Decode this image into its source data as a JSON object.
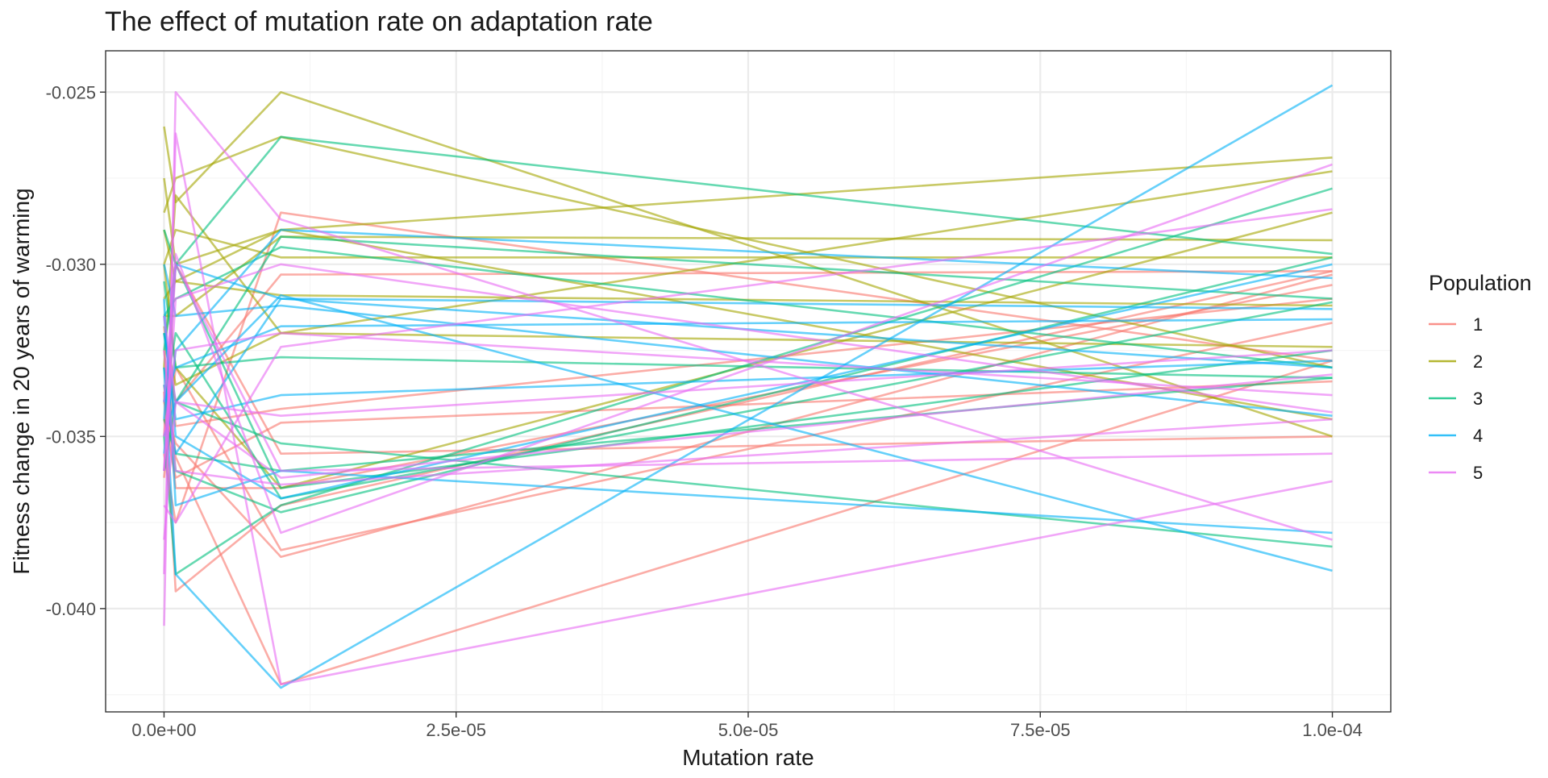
{
  "colors": {
    "series": [
      "#F8766D",
      "#A3A500",
      "#00BF7D",
      "#00B0F6",
      "#E76BF3"
    ],
    "grid_major": "#EBEBEB",
    "grid_minor": "#F5F5F5",
    "panel_border": "#333333",
    "text": "#1a1a1a",
    "axis_text": "#4D4D4D"
  },
  "chart_data": {
    "type": "line",
    "title": "The effect of mutation rate on adaptation rate",
    "xlabel": "Mutation rate",
    "ylabel": "Fitness change in 20 years of warming",
    "xlim": [
      -5e-06,
      0.000105
    ],
    "ylim": [
      -0.043,
      -0.0238
    ],
    "x_ticks": [
      0,
      2.5e-05,
      5e-05,
      7.5e-05,
      0.0001
    ],
    "x_tick_labels": [
      "0.0e+00",
      "2.5e-05",
      "5.0e-05",
      "7.5e-05",
      "1.0e-04"
    ],
    "y_ticks": [
      -0.04,
      -0.035,
      -0.03,
      -0.025
    ],
    "y_tick_labels": [
      "-0.040",
      "-0.035",
      "-0.030",
      "-0.025"
    ],
    "x_minor_ticks": [
      1.25e-05,
      3.75e-05,
      6.25e-05,
      8.75e-05
    ],
    "y_minor_ticks": [
      -0.0425,
      -0.0375,
      -0.0325,
      -0.0275
    ],
    "grid": true,
    "legend": {
      "title": "Population",
      "position": "right",
      "entries": [
        "1",
        "2",
        "3",
        "4",
        "5"
      ]
    },
    "x": [
      0,
      1e-06,
      1e-05,
      0.0001
    ],
    "series": [
      {
        "name": "1",
        "lines": [
          [
            -0.0337,
            -0.0395,
            -0.037,
            -0.0302
          ],
          [
            -0.0355,
            -0.0375,
            -0.0285,
            -0.0328
          ],
          [
            -0.033,
            -0.034,
            -0.0303,
            -0.0302
          ],
          [
            -0.0362,
            -0.033,
            -0.0383,
            -0.0317
          ],
          [
            -0.034,
            -0.0352,
            -0.0385,
            -0.0303
          ],
          [
            -0.0325,
            -0.0356,
            -0.0422,
            -0.0328
          ],
          [
            -0.035,
            -0.03,
            -0.0355,
            -0.035
          ],
          [
            -0.0345,
            -0.0362,
            -0.0346,
            -0.0334
          ],
          [
            -0.0318,
            -0.0347,
            -0.0342,
            -0.031
          ],
          [
            -0.0335,
            -0.0365,
            -0.0365,
            -0.0306
          ]
        ]
      },
      {
        "name": "2",
        "lines": [
          [
            -0.026,
            -0.0282,
            -0.025,
            -0.035
          ],
          [
            -0.0285,
            -0.0275,
            -0.0263,
            -0.033
          ],
          [
            -0.03,
            -0.029,
            -0.0298,
            -0.0298
          ],
          [
            -0.031,
            -0.0305,
            -0.029,
            -0.0269
          ],
          [
            -0.032,
            -0.0335,
            -0.032,
            -0.0273
          ],
          [
            -0.029,
            -0.0305,
            -0.0309,
            -0.0312
          ],
          [
            -0.0315,
            -0.0315,
            -0.0292,
            -0.0293
          ],
          [
            -0.03,
            -0.033,
            -0.0365,
            -0.0285
          ],
          [
            -0.0275,
            -0.03,
            -0.029,
            -0.0345
          ],
          [
            -0.033,
            -0.028,
            -0.032,
            -0.0324
          ]
        ]
      },
      {
        "name": "3",
        "lines": [
          [
            -0.029,
            -0.03,
            -0.0263,
            -0.0297
          ],
          [
            -0.032,
            -0.034,
            -0.0352,
            -0.0382
          ],
          [
            -0.035,
            -0.039,
            -0.037,
            -0.0278
          ],
          [
            -0.0305,
            -0.033,
            -0.0327,
            -0.0333
          ],
          [
            -0.033,
            -0.036,
            -0.0372,
            -0.0298
          ],
          [
            -0.034,
            -0.032,
            -0.0368,
            -0.0311
          ],
          [
            -0.0315,
            -0.031,
            -0.0295,
            -0.033
          ],
          [
            -0.0345,
            -0.0355,
            -0.036,
            -0.0333
          ],
          [
            -0.0325,
            -0.03,
            -0.0365,
            -0.0325
          ],
          [
            -0.036,
            -0.034,
            -0.0292,
            -0.031
          ]
        ]
      },
      {
        "name": "4",
        "lines": [
          [
            -0.033,
            -0.039,
            -0.0423,
            -0.0248
          ],
          [
            -0.035,
            -0.034,
            -0.0309,
            -0.0389
          ],
          [
            -0.031,
            -0.037,
            -0.036,
            -0.0378
          ],
          [
            -0.032,
            -0.0345,
            -0.0338,
            -0.0328
          ],
          [
            -0.034,
            -0.033,
            -0.0318,
            -0.0316
          ],
          [
            -0.03,
            -0.0315,
            -0.0312,
            -0.0344
          ],
          [
            -0.0355,
            -0.0325,
            -0.029,
            -0.0304
          ],
          [
            -0.0315,
            -0.035,
            -0.0368,
            -0.03
          ],
          [
            -0.0335,
            -0.0355,
            -0.031,
            -0.033
          ],
          [
            -0.0345,
            -0.03,
            -0.031,
            -0.0313
          ]
        ]
      },
      {
        "name": "5",
        "lines": [
          [
            -0.0405,
            -0.025,
            -0.0287,
            -0.038
          ],
          [
            -0.039,
            -0.0262,
            -0.0422,
            -0.0363
          ],
          [
            -0.036,
            -0.03,
            -0.036,
            -0.0355
          ],
          [
            -0.037,
            -0.0375,
            -0.0324,
            -0.0284
          ],
          [
            -0.034,
            -0.0297,
            -0.0378,
            -0.0271
          ],
          [
            -0.0325,
            -0.036,
            -0.0364,
            -0.0345
          ],
          [
            -0.038,
            -0.034,
            -0.0344,
            -0.0325
          ],
          [
            -0.035,
            -0.0325,
            -0.032,
            -0.0338
          ],
          [
            -0.0315,
            -0.034,
            -0.0362,
            -0.0332
          ],
          [
            -0.036,
            -0.031,
            -0.03,
            -0.0343
          ]
        ]
      }
    ]
  }
}
